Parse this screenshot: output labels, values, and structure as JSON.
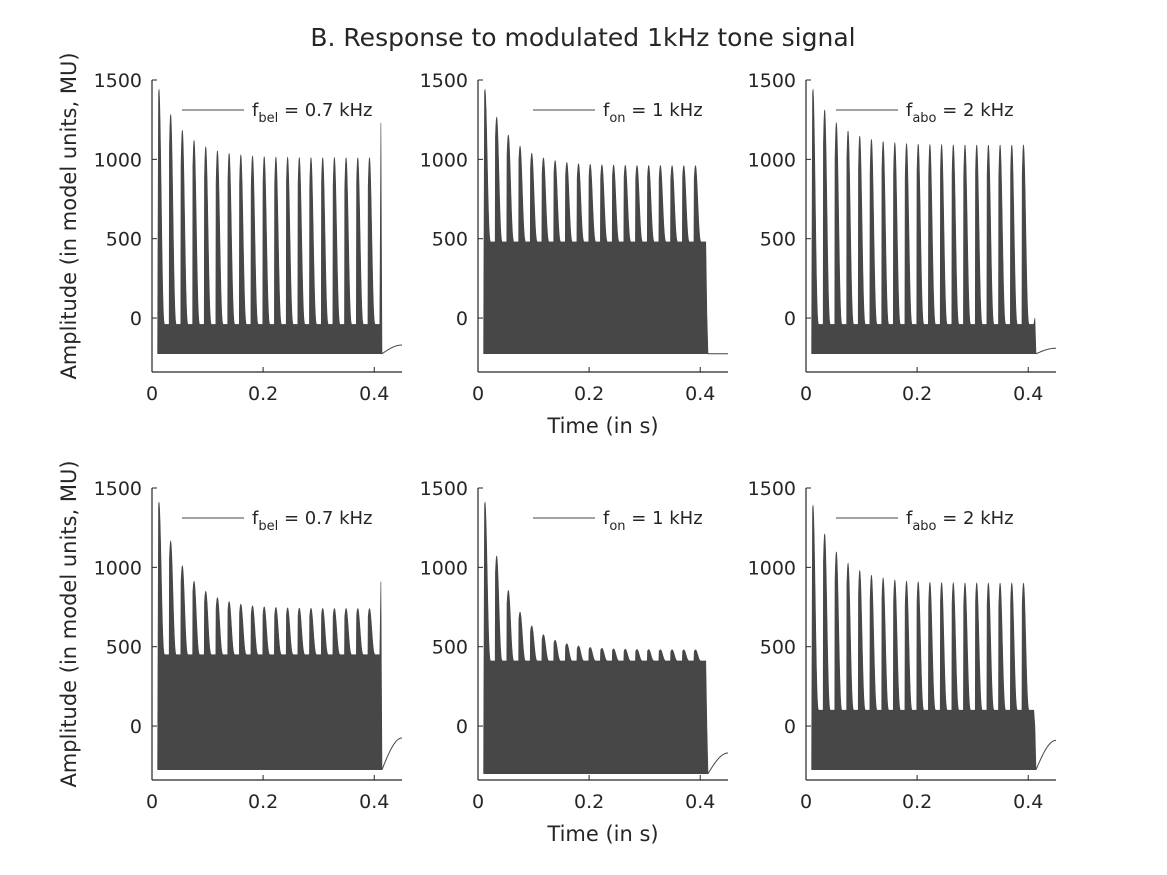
{
  "title": "B. Response to modulated 1kHz tone signal",
  "colors": {
    "signal": "#474747",
    "axis": "#262626"
  },
  "chart_data": {
    "type": "line",
    "layout": "2x3",
    "xlim": [
      0,
      0.45
    ],
    "ylim": [
      -340,
      1500
    ],
    "xticks": [
      0,
      0.2,
      0.4
    ],
    "xtick_labels": [
      "0",
      "0.2",
      "0.4"
    ],
    "yticks": [
      0,
      500,
      1000,
      1500
    ],
    "ytick_labels": [
      "0",
      "500",
      "1000",
      "1500"
    ],
    "xlabel": "Time (in s)",
    "ylabel": "Amplitude (in model units, MU)",
    "signal": {
      "onset_s": 0.01,
      "offset_s": 0.41,
      "modulation_periods": 19
    },
    "panels": [
      {
        "row": 1,
        "col": 1,
        "legend": {
          "symbol": "f",
          "subscript": "bel",
          "rest": " = 0.7 kHz"
        },
        "carrier_floor": -225,
        "onset_peak": 1440,
        "steady_peak": 1010,
        "trough": -40,
        "offset_spike": 1230,
        "tail_end": -170
      },
      {
        "row": 1,
        "col": 2,
        "legend": {
          "symbol": "f",
          "subscript": "on",
          "rest": " = 1 kHz"
        },
        "carrier_floor": -225,
        "onset_peak": 1440,
        "steady_peak": 960,
        "trough": 480,
        "offset_spike": 20,
        "tail_end": -225
      },
      {
        "row": 1,
        "col": 3,
        "legend": {
          "symbol": "f",
          "subscript": "abo",
          "rest": " = 2 kHz"
        },
        "carrier_floor": -225,
        "onset_peak": 1440,
        "steady_peak": 1090,
        "trough": -40,
        "offset_spike": 0,
        "tail_end": -190
      },
      {
        "row": 2,
        "col": 1,
        "legend": {
          "symbol": "f",
          "subscript": "bel",
          "rest": " = 0.7 kHz"
        },
        "carrier_floor": -275,
        "onset_peak": 1410,
        "steady_peak": 740,
        "trough": 450,
        "offset_spike": 910,
        "tail_end": -75
      },
      {
        "row": 2,
        "col": 2,
        "legend": {
          "symbol": "f",
          "subscript": "on",
          "rest": " = 1 kHz"
        },
        "carrier_floor": -300,
        "onset_peak": 1410,
        "steady_peak": 480,
        "trough": 410,
        "offset_spike": 0,
        "tail_end": -170
      },
      {
        "row": 2,
        "col": 3,
        "legend": {
          "symbol": "f",
          "subscript": "abo",
          "rest": " = 2 kHz"
        },
        "carrier_floor": -275,
        "onset_peak": 1390,
        "steady_peak": 900,
        "trough": 100,
        "offset_spike": 0,
        "tail_end": -90
      }
    ]
  }
}
